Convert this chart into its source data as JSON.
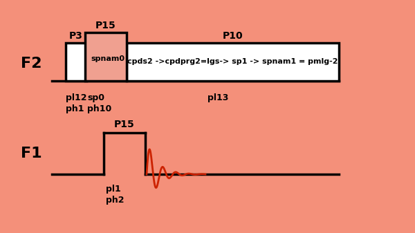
{
  "bg_color": "#F4907A",
  "line_color": "#000000",
  "red_color": "#CC2200",
  "fig_width": 6.0,
  "fig_height": 3.37,
  "dpi": 100,
  "F2_label": "F2",
  "F1_label": "F1",
  "annotations": {
    "P3_label": "P3",
    "P15_top_label": "P15",
    "P10_label": "P10",
    "spnam0_label": "spnam0",
    "cpds2_label": "cpds2 ->cpdprg2=lgs-> sp1 -> spnam1 = pmlg-2",
    "pl12_label": "pl12",
    "ph1_label": "ph1",
    "sp0_label": "sp0",
    "ph10_label": "ph10",
    "pl13_label": "pl13",
    "P15_f1_label": "P15",
    "pl1_label": "pl1",
    "ph2_label": "ph2"
  }
}
